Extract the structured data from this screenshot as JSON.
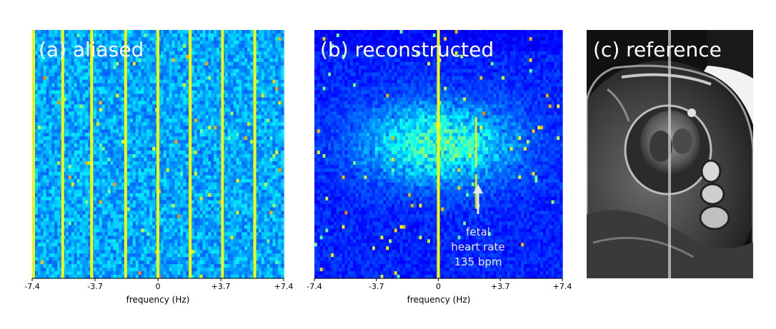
{
  "figure": {
    "panels": [
      {
        "id": "a",
        "title": "(a) aliased",
        "xlabel": "frequency (Hz)",
        "xticks": [
          "-7.4",
          "-3.7",
          "0",
          "+3.7",
          "+7.4"
        ],
        "type": "spectrogram"
      },
      {
        "id": "b",
        "title": "(b) reconstructed",
        "xlabel": "frequency (Hz)",
        "xticks": [
          "-7.4",
          "-3.7",
          "0",
          "+3.7",
          "+7.4"
        ],
        "type": "spectrogram",
        "annotation": [
          "fetal",
          "heart rate",
          "135 bpm"
        ]
      },
      {
        "id": "c",
        "title": "(c) reference",
        "type": "mri-image"
      }
    ]
  },
  "colors": {
    "background": "#1b2fa8",
    "peak": "#ffff00",
    "arrow": "#e8e8e8"
  },
  "chart_data": [
    {
      "type": "heatmap",
      "title": "(a) aliased",
      "xlabel": "frequency (Hz)",
      "xlim": [
        -7.4,
        7.4
      ],
      "xticks": [
        -7.4,
        -3.7,
        0,
        3.7,
        7.4
      ],
      "peak_frequencies_hz": [
        -7.4,
        -5.6,
        -3.9,
        -1.9,
        0,
        1.9,
        3.8,
        5.7
      ],
      "peak_intensity": [
        0.9,
        0.95,
        1.0,
        0.95,
        1.0,
        1.0,
        0.95,
        1.0
      ]
    },
    {
      "type": "heatmap",
      "title": "(b) reconstructed",
      "xlabel": "frequency (Hz)",
      "xlim": [
        -7.4,
        7.4
      ],
      "xticks": [
        -7.4,
        -3.7,
        0,
        3.7,
        7.4
      ],
      "peak_frequencies_hz": [
        0,
        2.25
      ],
      "peak_intensity": [
        1.0,
        0.8
      ],
      "annotation": {
        "text": "fetal heart rate 135 bpm",
        "frequency_hz": 2.25
      }
    }
  ]
}
